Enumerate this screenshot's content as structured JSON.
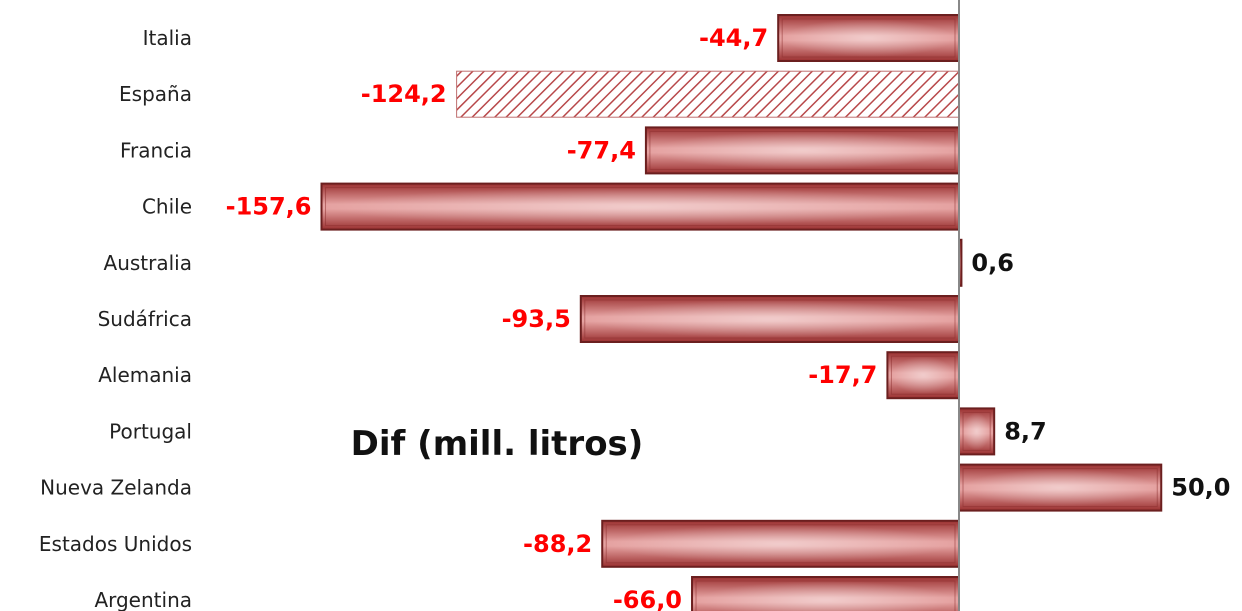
{
  "chart_data": {
    "type": "bar",
    "orientation": "horizontal",
    "title": "Dif (mill. litros)",
    "categories": [
      "Italia",
      "España",
      "Francia",
      "Chile",
      "Australia",
      "Sudáfrica",
      "Alemania",
      "Portugal",
      "Nueva Zelanda",
      "Estados Unidos",
      "Argentina"
    ],
    "values": [
      -44.7,
      -124.2,
      -77.4,
      -157.6,
      0.6,
      -93.5,
      -17.7,
      8.7,
      50.0,
      -88.2,
      -66.0
    ],
    "value_labels": [
      "-44,7",
      "-124,2",
      "-77,4",
      "-157,6",
      "0,6",
      "-93,5",
      "-17,7",
      "8,7",
      "50,0",
      "-88,2",
      "-66,0"
    ],
    "highlighted_category": "España",
    "highlight_style": "hatched",
    "xlim": [
      -160,
      55
    ],
    "grid": false,
    "colors": {
      "bar": "#c0504d",
      "bar_light": "#f2c4c3",
      "bar_dark": "#7a2222",
      "negative_label": "#ff0000",
      "positive_label": "#111111",
      "axis": "#888888",
      "hatch": "#b8484a"
    }
  }
}
